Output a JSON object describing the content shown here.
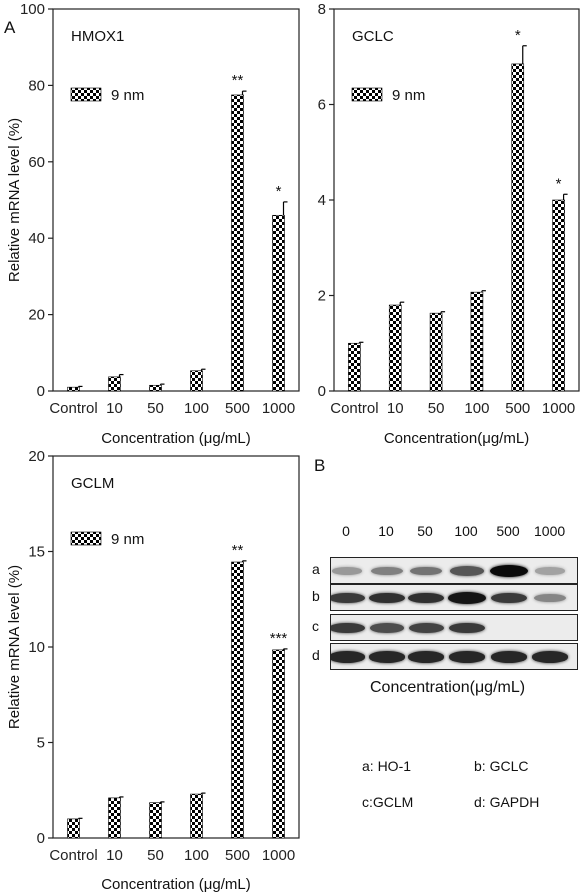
{
  "panel_a_label": "A",
  "panel_b_label": "B",
  "chart_data": [
    {
      "type": "bar",
      "title": "HMOX1",
      "legend": [
        "9 nm"
      ],
      "categories": [
        "Control",
        "10",
        "50",
        "100",
        "500",
        "1000"
      ],
      "series": [
        {
          "name": "9 nm",
          "values": [
            1,
            3.7,
            1.5,
            5.3,
            77.5,
            46
          ]
        }
      ],
      "errors": [
        0.2,
        0.6,
        0.3,
        0.4,
        1.0,
        3.5
      ],
      "annotations": [
        "",
        "",
        "",
        "",
        "**",
        "*"
      ],
      "xlabel": "Concentration (μg/mL)",
      "ylabel": "Relative mRNA level (%)",
      "ylim": [
        0,
        100
      ],
      "yticks": [
        0,
        20,
        40,
        60,
        80,
        100
      ]
    },
    {
      "type": "bar",
      "title": "GCLC",
      "legend": [
        "9 nm"
      ],
      "categories": [
        "Control",
        "10",
        "50",
        "100",
        "500",
        "1000"
      ],
      "series": [
        {
          "name": "9 nm",
          "values": [
            1.0,
            1.8,
            1.63,
            2.07,
            6.85,
            4.0
          ]
        }
      ],
      "errors": [
        0.02,
        0.06,
        0.03,
        0.03,
        0.38,
        0.12
      ],
      "annotations": [
        "",
        "",
        "",
        "",
        "*",
        "*"
      ],
      "xlabel": "Concentration(μg/mL)",
      "ylabel": "",
      "ylim": [
        0,
        8
      ],
      "yticks": [
        0,
        2,
        4,
        6,
        8
      ]
    },
    {
      "type": "bar",
      "title": "GCLM",
      "legend": [
        "9 nm"
      ],
      "categories": [
        "Control",
        "10",
        "50",
        "100",
        "500",
        "1000"
      ],
      "series": [
        {
          "name": "9 nm",
          "values": [
            1.0,
            2.1,
            1.85,
            2.3,
            14.45,
            9.85
          ]
        }
      ],
      "errors": [
        0.03,
        0.05,
        0.04,
        0.05,
        0.06,
        0.05
      ],
      "annotations": [
        "",
        "",
        "",
        "",
        "**",
        "***"
      ],
      "xlabel": "Concentration (μg/mL)",
      "ylabel": "Relative mRNA level (%)",
      "ylim": [
        0,
        20
      ],
      "yticks": [
        0,
        5,
        10,
        15,
        20
      ]
    }
  ],
  "blot": {
    "lanes": [
      "0",
      "10",
      "50",
      "100",
      "500",
      "1000"
    ],
    "rows": [
      {
        "label": "a",
        "intensity": [
          0.25,
          0.38,
          0.45,
          0.6,
          1.0,
          0.2
        ]
      },
      {
        "label": "b",
        "intensity": [
          0.75,
          0.8,
          0.8,
          0.95,
          0.75,
          0.35
        ]
      },
      {
        "label": "c",
        "intensity": [
          0.75,
          0.65,
          0.7,
          0.75,
          0.0,
          0.0
        ]
      },
      {
        "label": "d",
        "intensity": [
          0.85,
          0.85,
          0.85,
          0.85,
          0.85,
          0.85
        ]
      }
    ],
    "xlabel": "Concentration(μg/mL)",
    "legend": [
      "a: HO-1",
      "b: GCLC",
      "c:GCLM",
      "d: GAPDH"
    ]
  }
}
